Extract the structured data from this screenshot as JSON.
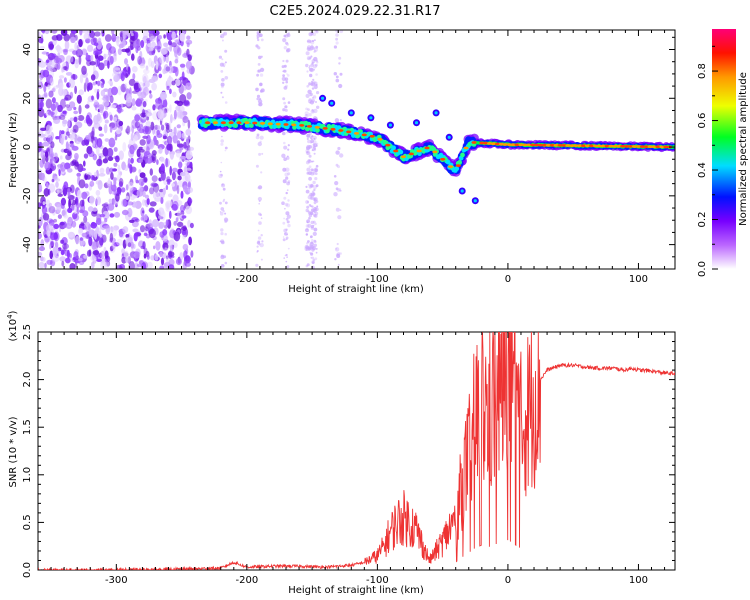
{
  "title": "C2E5.2024.029.22.31.R17",
  "chart_data": [
    {
      "type": "heatmap",
      "xlabel": "Height of straight line (km)",
      "ylabel": "Frequency (Hz)",
      "xlim": [
        -360,
        128
      ],
      "ylim": [
        -50,
        48
      ],
      "xticks": [
        -300,
        -200,
        -100,
        0,
        100
      ],
      "yticks": [
        -40,
        -20,
        0,
        20,
        40
      ],
      "colorbar": {
        "label": "Normalized spectral amplitude",
        "range": [
          0.0,
          0.97
        ],
        "ticks": [
          "0.0",
          "0.2",
          "0.4",
          "0.6",
          "0.8"
        ],
        "colors": [
          "#ffffff",
          "#9900ff",
          "#0000ff",
          "#00e5ff",
          "#00ff00",
          "#ffff00",
          "#ff8800",
          "#ff0000",
          "#ff0077"
        ]
      },
      "signal_track": [
        {
          "x": -235,
          "y": 10
        },
        {
          "x": -200,
          "y": 10
        },
        {
          "x": -160,
          "y": 9
        },
        {
          "x": -130,
          "y": 7
        },
        {
          "x": -100,
          "y": 4
        },
        {
          "x": -80,
          "y": -4
        },
        {
          "x": -60,
          "y": 0
        },
        {
          "x": -40,
          "y": -10
        },
        {
          "x": -30,
          "y": 2
        },
        {
          "x": 0,
          "y": 1
        },
        {
          "x": 128,
          "y": 0
        }
      ],
      "noise_region": {
        "x_from": -360,
        "x_to": -242
      }
    },
    {
      "type": "line",
      "xlabel": "Height of straight line (km)",
      "ylabel": "SNR (10 * v/v)",
      "yscale_label": "(x10",
      "yscale_exponent": "4",
      "xlim": [
        -360,
        128
      ],
      "ylim": [
        0.0,
        2.5
      ],
      "xticks": [
        -300,
        -200,
        -100,
        0,
        100
      ],
      "yticks": [
        "0.0",
        "0.5",
        "1.0",
        "1.5",
        "2.0",
        "2.5"
      ],
      "color": "#ee3333",
      "series": [
        {
          "x": [
            -360,
            -300,
            -250,
            -220,
            -210,
            -200,
            -180,
            -160,
            -140,
            -120,
            -110,
            -100,
            -95,
            -90,
            -85,
            -80,
            -75,
            -70,
            -65,
            -60,
            -55,
            -50,
            -45,
            -40,
            -35,
            -30,
            -25,
            -20,
            -15,
            -10,
            -5,
            0,
            5,
            10,
            15,
            20,
            25,
            30,
            40,
            50,
            60,
            70,
            80,
            90,
            95,
            100,
            110,
            120,
            128
          ],
          "y": [
            0.0,
            0.0,
            0.01,
            0.02,
            0.08,
            0.03,
            0.04,
            0.04,
            0.03,
            0.05,
            0.08,
            0.15,
            0.25,
            0.4,
            0.5,
            0.55,
            0.5,
            0.42,
            0.25,
            0.1,
            0.2,
            0.3,
            0.42,
            0.55,
            0.9,
            1.2,
            1.55,
            1.75,
            1.6,
            1.8,
            1.9,
            2.1,
            1.8,
            1.5,
            1.65,
            1.85,
            2.0,
            2.1,
            2.15,
            2.15,
            2.13,
            2.12,
            2.12,
            2.1,
            2.12,
            2.1,
            2.09,
            2.07,
            2.06
          ]
        }
      ]
    }
  ]
}
